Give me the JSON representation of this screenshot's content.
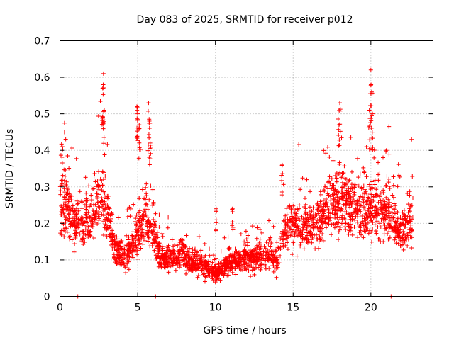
{
  "chart_data": {
    "type": "scatter",
    "title": "Day 083 of 2025, SRMTID for receiver p012",
    "xlabel": "GPS time / hours",
    "ylabel": "SRMTID / TECUs",
    "xlim": [
      0,
      24
    ],
    "ylim": [
      0,
      0.7
    ],
    "x_ticks": [
      0,
      5,
      10,
      15,
      20
    ],
    "x_tick_labels": [
      "0",
      "5",
      "10",
      "15",
      "20"
    ],
    "y_ticks": [
      0,
      0.1,
      0.2,
      0.3,
      0.4,
      0.5,
      0.6,
      0.7
    ],
    "y_tick_labels": [
      "0",
      "0.1",
      "0.2",
      "0.3",
      "0.4",
      "0.5",
      "0.6",
      "0.7"
    ],
    "grid": true,
    "marker": "+",
    "marker_color": "#ff0000",
    "series": [
      {
        "name": "SRMTID",
        "envelope": [
          {
            "x": 0.0,
            "y": 0.26
          },
          {
            "x": 0.5,
            "y": 0.24
          },
          {
            "x": 1.0,
            "y": 0.2
          },
          {
            "x": 1.5,
            "y": 0.21
          },
          {
            "x": 2.0,
            "y": 0.22
          },
          {
            "x": 2.5,
            "y": 0.27
          },
          {
            "x": 3.0,
            "y": 0.24
          },
          {
            "x": 3.5,
            "y": 0.14
          },
          {
            "x": 4.0,
            "y": 0.11
          },
          {
            "x": 4.5,
            "y": 0.12
          },
          {
            "x": 5.0,
            "y": 0.17
          },
          {
            "x": 5.5,
            "y": 0.22
          },
          {
            "x": 6.0,
            "y": 0.18
          },
          {
            "x": 6.5,
            "y": 0.1
          },
          {
            "x": 7.0,
            "y": 0.11
          },
          {
            "x": 7.5,
            "y": 0.1
          },
          {
            "x": 8.0,
            "y": 0.12
          },
          {
            "x": 8.5,
            "y": 0.09
          },
          {
            "x": 9.0,
            "y": 0.09
          },
          {
            "x": 9.5,
            "y": 0.08
          },
          {
            "x": 10.0,
            "y": 0.06
          },
          {
            "x": 10.5,
            "y": 0.08
          },
          {
            "x": 11.0,
            "y": 0.09
          },
          {
            "x": 11.5,
            "y": 0.1
          },
          {
            "x": 12.0,
            "y": 0.11
          },
          {
            "x": 12.5,
            "y": 0.1
          },
          {
            "x": 13.0,
            "y": 0.11
          },
          {
            "x": 13.5,
            "y": 0.11
          },
          {
            "x": 14.0,
            "y": 0.1
          },
          {
            "x": 14.5,
            "y": 0.19
          },
          {
            "x": 15.0,
            "y": 0.21
          },
          {
            "x": 15.5,
            "y": 0.19
          },
          {
            "x": 16.0,
            "y": 0.18
          },
          {
            "x": 16.5,
            "y": 0.2
          },
          {
            "x": 17.0,
            "y": 0.24
          },
          {
            "x": 17.5,
            "y": 0.25
          },
          {
            "x": 18.0,
            "y": 0.27
          },
          {
            "x": 18.5,
            "y": 0.25
          },
          {
            "x": 19.0,
            "y": 0.24
          },
          {
            "x": 19.5,
            "y": 0.24
          },
          {
            "x": 20.0,
            "y": 0.25
          },
          {
            "x": 20.5,
            "y": 0.21
          },
          {
            "x": 21.0,
            "y": 0.23
          },
          {
            "x": 21.5,
            "y": 0.2
          },
          {
            "x": 22.0,
            "y": 0.17
          },
          {
            "x": 22.5,
            "y": 0.21
          },
          {
            "x": 22.7,
            "y": 0.22
          }
        ],
        "spikes": [
          {
            "x": 0.15,
            "y": 0.41
          },
          {
            "x": 2.8,
            "y": 0.61
          },
          {
            "x": 2.75,
            "y": 0.57
          },
          {
            "x": 2.85,
            "y": 0.51
          },
          {
            "x": 4.95,
            "y": 0.52
          },
          {
            "x": 5.0,
            "y": 0.5
          },
          {
            "x": 5.1,
            "y": 0.47
          },
          {
            "x": 5.7,
            "y": 0.53
          },
          {
            "x": 5.75,
            "y": 0.48
          },
          {
            "x": 5.8,
            "y": 0.42
          },
          {
            "x": 17.95,
            "y": 0.47
          },
          {
            "x": 18.0,
            "y": 0.53
          },
          {
            "x": 19.9,
            "y": 0.51
          },
          {
            "x": 20.0,
            "y": 0.62
          },
          {
            "x": 20.05,
            "y": 0.56
          },
          {
            "x": 20.1,
            "y": 0.5
          },
          {
            "x": 21.0,
            "y": 0.4
          },
          {
            "x": 14.3,
            "y": 0.36
          },
          {
            "x": 10.05,
            "y": 0.24
          },
          {
            "x": 11.1,
            "y": 0.24
          }
        ],
        "zero_points": [
          {
            "x": 1.15,
            "y": 0.0
          },
          {
            "x": 6.15,
            "y": 0.0
          },
          {
            "x": 21.3,
            "y": 0.0
          }
        ],
        "x_range": [
          0.0,
          22.7
        ]
      }
    ]
  }
}
